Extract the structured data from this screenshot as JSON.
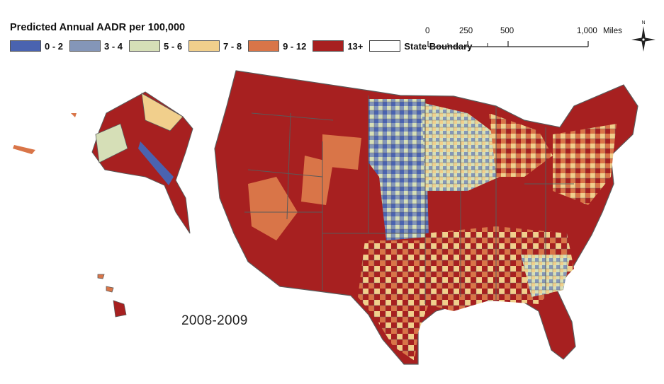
{
  "legend": {
    "title": "Predicted Annual AADR per 100,000",
    "items": [
      {
        "label": "0 - 2",
        "color": "#4a63b0"
      },
      {
        "label": "3 - 4",
        "color": "#8496b8"
      },
      {
        "label": "5 - 6",
        "color": "#d6dfb7"
      },
      {
        "label": "7 - 8",
        "color": "#f1cf8c"
      },
      {
        "label": "9 - 12",
        "color": "#d97548"
      },
      {
        "label": "13+",
        "color": "#a72020"
      },
      {
        "label": "State Boundary",
        "color": "#ffffff"
      }
    ]
  },
  "scale_bar": {
    "ticks": [
      "0",
      "250",
      "500",
      "1,000"
    ],
    "unit": "Miles"
  },
  "compass": {
    "north_label": "N",
    "icon": "north-arrow-icon"
  },
  "map": {
    "period_label": "2008-2009",
    "regions": [
      "conterminous-us",
      "alaska",
      "hawaii"
    ],
    "palette": {
      "dark_red": "#a72020",
      "orange": "#d97548",
      "tan": "#f1cf8c",
      "pale_green": "#d6dfb7",
      "slate_blue": "#8496b8",
      "blue": "#4a63b0",
      "boundary": "#5a5a5a"
    }
  }
}
